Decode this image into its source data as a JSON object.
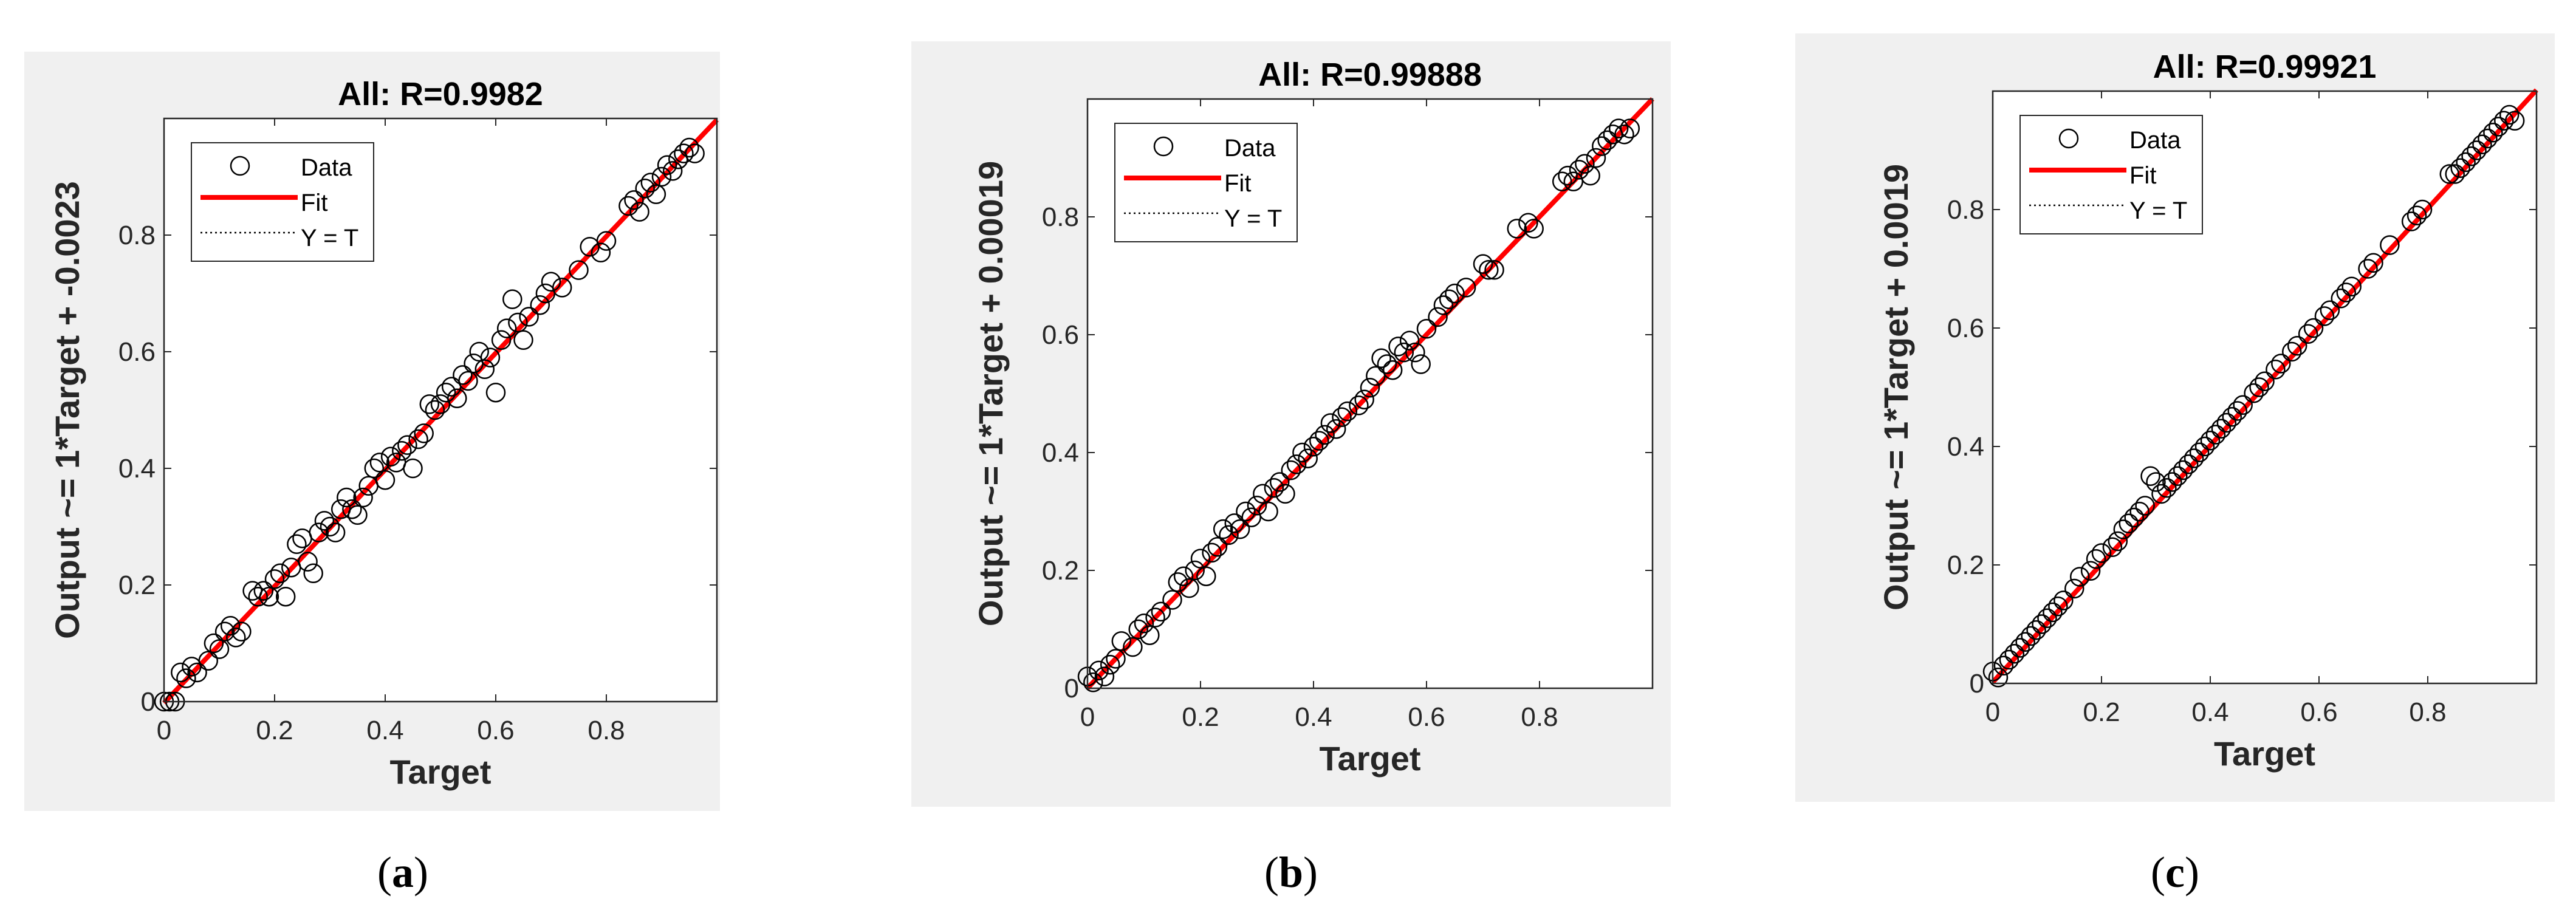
{
  "chart_data": [
    {
      "type": "scatter",
      "panel_label": "a",
      "title": "All: R=0.9982",
      "xlabel": "Target",
      "ylabel": "Output ~= 1*Target + -0.0023",
      "xlim": [
        0,
        1
      ],
      "ylim": [
        0,
        1
      ],
      "xticks": [
        "0",
        "0.2",
        "0.4",
        "0.6",
        "0.8"
      ],
      "yticks": [
        "0",
        "0.2",
        "0.4",
        "0.6",
        "0.8"
      ],
      "legend": {
        "placement": "top-left",
        "entries": [
          "Data",
          "Fit",
          "Y = T"
        ]
      },
      "fit": {
        "slope": 1,
        "intercept": -0.0023
      },
      "colors": {
        "data": "#000000",
        "fit": "#ff0000",
        "identity": "#000000"
      },
      "data_points": [
        [
          0.0,
          0.0
        ],
        [
          0.01,
          0.0
        ],
        [
          0.02,
          0.0
        ],
        [
          0.03,
          0.05
        ],
        [
          0.04,
          0.04
        ],
        [
          0.05,
          0.06
        ],
        [
          0.06,
          0.05
        ],
        [
          0.08,
          0.07
        ],
        [
          0.09,
          0.1
        ],
        [
          0.1,
          0.09
        ],
        [
          0.11,
          0.12
        ],
        [
          0.12,
          0.13
        ],
        [
          0.13,
          0.11
        ],
        [
          0.14,
          0.12
        ],
        [
          0.16,
          0.19
        ],
        [
          0.17,
          0.18
        ],
        [
          0.18,
          0.19
        ],
        [
          0.19,
          0.18
        ],
        [
          0.2,
          0.21
        ],
        [
          0.21,
          0.22
        ],
        [
          0.22,
          0.18
        ],
        [
          0.23,
          0.23
        ],
        [
          0.24,
          0.27
        ],
        [
          0.25,
          0.28
        ],
        [
          0.26,
          0.24
        ],
        [
          0.27,
          0.22
        ],
        [
          0.28,
          0.29
        ],
        [
          0.29,
          0.31
        ],
        [
          0.3,
          0.3
        ],
        [
          0.31,
          0.29
        ],
        [
          0.32,
          0.33
        ],
        [
          0.33,
          0.35
        ],
        [
          0.34,
          0.33
        ],
        [
          0.35,
          0.32
        ],
        [
          0.36,
          0.35
        ],
        [
          0.37,
          0.37
        ],
        [
          0.38,
          0.4
        ],
        [
          0.39,
          0.41
        ],
        [
          0.4,
          0.38
        ],
        [
          0.41,
          0.42
        ],
        [
          0.42,
          0.41
        ],
        [
          0.43,
          0.43
        ],
        [
          0.44,
          0.44
        ],
        [
          0.45,
          0.4
        ],
        [
          0.46,
          0.45
        ],
        [
          0.47,
          0.46
        ],
        [
          0.48,
          0.51
        ],
        [
          0.49,
          0.5
        ],
        [
          0.5,
          0.51
        ],
        [
          0.51,
          0.53
        ],
        [
          0.52,
          0.54
        ],
        [
          0.53,
          0.52
        ],
        [
          0.54,
          0.56
        ],
        [
          0.55,
          0.55
        ],
        [
          0.56,
          0.58
        ],
        [
          0.57,
          0.6
        ],
        [
          0.58,
          0.57
        ],
        [
          0.59,
          0.59
        ],
        [
          0.6,
          0.53
        ],
        [
          0.61,
          0.62
        ],
        [
          0.62,
          0.64
        ],
        [
          0.63,
          0.69
        ],
        [
          0.64,
          0.65
        ],
        [
          0.65,
          0.62
        ],
        [
          0.66,
          0.66
        ],
        [
          0.68,
          0.68
        ],
        [
          0.69,
          0.7
        ],
        [
          0.7,
          0.72
        ],
        [
          0.72,
          0.71
        ],
        [
          0.75,
          0.74
        ],
        [
          0.77,
          0.78
        ],
        [
          0.79,
          0.77
        ],
        [
          0.8,
          0.79
        ],
        [
          0.84,
          0.85
        ],
        [
          0.85,
          0.86
        ],
        [
          0.86,
          0.84
        ],
        [
          0.87,
          0.88
        ],
        [
          0.88,
          0.89
        ],
        [
          0.89,
          0.87
        ],
        [
          0.9,
          0.9
        ],
        [
          0.91,
          0.92
        ],
        [
          0.92,
          0.91
        ],
        [
          0.93,
          0.93
        ],
        [
          0.94,
          0.94
        ],
        [
          0.95,
          0.95
        ],
        [
          0.96,
          0.94
        ]
      ]
    },
    {
      "type": "scatter",
      "panel_label": "b",
      "title": "All: R=0.99888",
      "xlabel": "Target",
      "ylabel": "Output ~= 1*Target + 0.00019",
      "xlim": [
        0,
        1
      ],
      "ylim": [
        0,
        1
      ],
      "xticks": [
        "0",
        "0.2",
        "0.4",
        "0.6",
        "0.8"
      ],
      "yticks": [
        "0",
        "0.2",
        "0.4",
        "0.6",
        "0.8"
      ],
      "legend": {
        "placement": "top-left",
        "entries": [
          "Data",
          "Fit",
          "Y = T"
        ]
      },
      "fit": {
        "slope": 1,
        "intercept": 0.00019
      },
      "colors": {
        "data": "#000000",
        "fit": "#ff0000",
        "identity": "#000000"
      },
      "data_points": [
        [
          0.0,
          0.02
        ],
        [
          0.01,
          0.01
        ],
        [
          0.02,
          0.03
        ],
        [
          0.03,
          0.02
        ],
        [
          0.04,
          0.04
        ],
        [
          0.05,
          0.05
        ],
        [
          0.06,
          0.08
        ],
        [
          0.08,
          0.07
        ],
        [
          0.09,
          0.1
        ],
        [
          0.1,
          0.11
        ],
        [
          0.11,
          0.09
        ],
        [
          0.12,
          0.12
        ],
        [
          0.13,
          0.13
        ],
        [
          0.15,
          0.15
        ],
        [
          0.16,
          0.18
        ],
        [
          0.17,
          0.19
        ],
        [
          0.18,
          0.17
        ],
        [
          0.19,
          0.2
        ],
        [
          0.2,
          0.22
        ],
        [
          0.21,
          0.19
        ],
        [
          0.22,
          0.23
        ],
        [
          0.23,
          0.24
        ],
        [
          0.24,
          0.27
        ],
        [
          0.25,
          0.26
        ],
        [
          0.26,
          0.28
        ],
        [
          0.27,
          0.27
        ],
        [
          0.28,
          0.3
        ],
        [
          0.29,
          0.29
        ],
        [
          0.3,
          0.31
        ],
        [
          0.31,
          0.33
        ],
        [
          0.32,
          0.3
        ],
        [
          0.33,
          0.34
        ],
        [
          0.34,
          0.35
        ],
        [
          0.35,
          0.33
        ],
        [
          0.36,
          0.37
        ],
        [
          0.37,
          0.38
        ],
        [
          0.38,
          0.4
        ],
        [
          0.39,
          0.39
        ],
        [
          0.4,
          0.41
        ],
        [
          0.41,
          0.42
        ],
        [
          0.42,
          0.43
        ],
        [
          0.43,
          0.45
        ],
        [
          0.44,
          0.44
        ],
        [
          0.45,
          0.46
        ],
        [
          0.46,
          0.47
        ],
        [
          0.48,
          0.48
        ],
        [
          0.49,
          0.49
        ],
        [
          0.5,
          0.51
        ],
        [
          0.51,
          0.53
        ],
        [
          0.52,
          0.56
        ],
        [
          0.53,
          0.55
        ],
        [
          0.54,
          0.54
        ],
        [
          0.55,
          0.58
        ],
        [
          0.56,
          0.57
        ],
        [
          0.57,
          0.59
        ],
        [
          0.58,
          0.57
        ],
        [
          0.59,
          0.55
        ],
        [
          0.6,
          0.61
        ],
        [
          0.62,
          0.63
        ],
        [
          0.63,
          0.65
        ],
        [
          0.64,
          0.66
        ],
        [
          0.65,
          0.67
        ],
        [
          0.67,
          0.68
        ],
        [
          0.7,
          0.72
        ],
        [
          0.71,
          0.71
        ],
        [
          0.72,
          0.71
        ],
        [
          0.76,
          0.78
        ],
        [
          0.78,
          0.79
        ],
        [
          0.79,
          0.78
        ],
        [
          0.84,
          0.86
        ],
        [
          0.85,
          0.87
        ],
        [
          0.86,
          0.86
        ],
        [
          0.87,
          0.88
        ],
        [
          0.88,
          0.89
        ],
        [
          0.89,
          0.87
        ],
        [
          0.9,
          0.9
        ],
        [
          0.91,
          0.92
        ],
        [
          0.92,
          0.93
        ],
        [
          0.93,
          0.94
        ],
        [
          0.94,
          0.95
        ],
        [
          0.95,
          0.94
        ],
        [
          0.96,
          0.95
        ]
      ]
    },
    {
      "type": "scatter",
      "panel_label": "c",
      "title": "All: R=0.99921",
      "xlabel": "Target",
      "ylabel": "Output ~= 1*Target + 0.0019",
      "xlim": [
        0,
        1
      ],
      "ylim": [
        0,
        1
      ],
      "xticks": [
        "0",
        "0.2",
        "0.4",
        "0.6",
        "0.8"
      ],
      "yticks": [
        "0",
        "0.2",
        "0.4",
        "0.6",
        "0.8"
      ],
      "legend": {
        "placement": "top-left",
        "entries": [
          "Data",
          "Fit",
          "Y = T"
        ]
      },
      "fit": {
        "slope": 1,
        "intercept": 0.0019
      },
      "colors": {
        "data": "#000000",
        "fit": "#ff0000",
        "identity": "#000000"
      },
      "data_points": [
        [
          0.0,
          0.02
        ],
        [
          0.01,
          0.01
        ],
        [
          0.02,
          0.03
        ],
        [
          0.03,
          0.04
        ],
        [
          0.04,
          0.05
        ],
        [
          0.05,
          0.06
        ],
        [
          0.06,
          0.07
        ],
        [
          0.07,
          0.08
        ],
        [
          0.08,
          0.09
        ],
        [
          0.09,
          0.1
        ],
        [
          0.1,
          0.11
        ],
        [
          0.11,
          0.12
        ],
        [
          0.12,
          0.13
        ],
        [
          0.13,
          0.14
        ],
        [
          0.15,
          0.16
        ],
        [
          0.16,
          0.18
        ],
        [
          0.18,
          0.19
        ],
        [
          0.19,
          0.21
        ],
        [
          0.2,
          0.22
        ],
        [
          0.22,
          0.23
        ],
        [
          0.23,
          0.24
        ],
        [
          0.24,
          0.26
        ],
        [
          0.25,
          0.27
        ],
        [
          0.26,
          0.28
        ],
        [
          0.27,
          0.29
        ],
        [
          0.28,
          0.3
        ],
        [
          0.29,
          0.35
        ],
        [
          0.3,
          0.34
        ],
        [
          0.31,
          0.32
        ],
        [
          0.32,
          0.33
        ],
        [
          0.33,
          0.34
        ],
        [
          0.34,
          0.35
        ],
        [
          0.35,
          0.36
        ],
        [
          0.36,
          0.37
        ],
        [
          0.37,
          0.38
        ],
        [
          0.38,
          0.39
        ],
        [
          0.39,
          0.4
        ],
        [
          0.4,
          0.41
        ],
        [
          0.41,
          0.42
        ],
        [
          0.42,
          0.43
        ],
        [
          0.43,
          0.44
        ],
        [
          0.44,
          0.45
        ],
        [
          0.45,
          0.46
        ],
        [
          0.46,
          0.47
        ],
        [
          0.48,
          0.49
        ],
        [
          0.49,
          0.5
        ],
        [
          0.5,
          0.51
        ],
        [
          0.52,
          0.53
        ],
        [
          0.53,
          0.54
        ],
        [
          0.55,
          0.56
        ],
        [
          0.56,
          0.57
        ],
        [
          0.58,
          0.59
        ],
        [
          0.59,
          0.6
        ],
        [
          0.61,
          0.62
        ],
        [
          0.62,
          0.63
        ],
        [
          0.64,
          0.65
        ],
        [
          0.65,
          0.66
        ],
        [
          0.66,
          0.67
        ],
        [
          0.69,
          0.7
        ],
        [
          0.7,
          0.71
        ],
        [
          0.73,
          0.74
        ],
        [
          0.77,
          0.78
        ],
        [
          0.78,
          0.79
        ],
        [
          0.79,
          0.8
        ],
        [
          0.84,
          0.86
        ],
        [
          0.85,
          0.86
        ],
        [
          0.86,
          0.87
        ],
        [
          0.87,
          0.88
        ],
        [
          0.88,
          0.89
        ],
        [
          0.89,
          0.9
        ],
        [
          0.9,
          0.91
        ],
        [
          0.91,
          0.92
        ],
        [
          0.92,
          0.93
        ],
        [
          0.93,
          0.94
        ],
        [
          0.94,
          0.95
        ],
        [
          0.95,
          0.96
        ],
        [
          0.96,
          0.95
        ]
      ]
    }
  ]
}
